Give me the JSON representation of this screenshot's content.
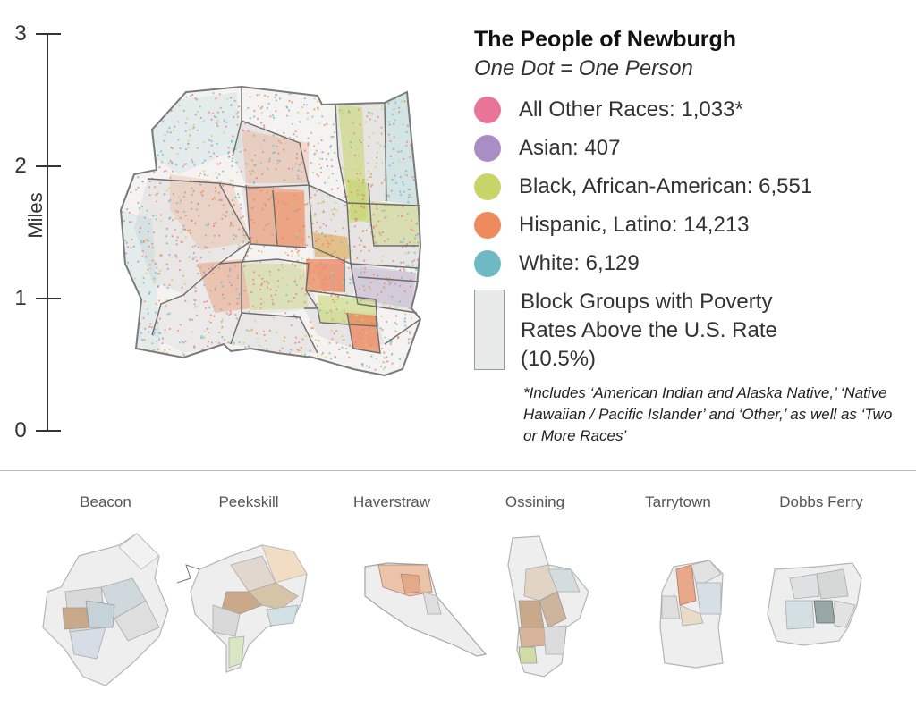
{
  "scale": {
    "title": "Miles",
    "ticks": [
      "3",
      "2",
      "1",
      "0"
    ]
  },
  "legend": {
    "title": "The People of Newburgh",
    "subtitle": "One Dot = One Person",
    "items": [
      {
        "label": "All Other Races: 1,033*",
        "color": "#e87598"
      },
      {
        "label": "Asian: 407",
        "color": "#a98ec6"
      },
      {
        "label": "Black, African-American: 6,551",
        "color": "#c5d56a"
      },
      {
        "label": "Hispanic, Latino: 14,213",
        "color": "#ee8a5c"
      },
      {
        "label": "White: 6,129",
        "color": "#6fb9c4"
      }
    ],
    "poverty_label": "Block Groups with Poverty Rates Above the U.S. Rate (10.5%)",
    "poverty_color": "#e8e9e9",
    "footnote": "*Includes ‘American Indian and Alaska Native,’ ‘Native Hawaiian / Pacific Islander’ and ‘Other,’ as well as ‘Two or More Races’"
  },
  "main_map": {
    "name": "Newburgh"
  },
  "comparison_maps": [
    {
      "name": "Beacon"
    },
    {
      "name": "Peekskill"
    },
    {
      "name": "Haverstraw"
    },
    {
      "name": "Ossining"
    },
    {
      "name": "Tarrytown"
    },
    {
      "name": "Dobbs Ferry"
    }
  ]
}
